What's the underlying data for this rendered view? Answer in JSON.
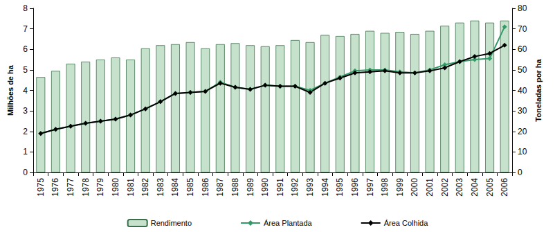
{
  "chart_data": {
    "type": "bar",
    "categories": [
      "1975",
      "1976",
      "1977",
      "1978",
      "1979",
      "1980",
      "1981",
      "1982",
      "1983",
      "1984",
      "1985",
      "1986",
      "1987",
      "1988",
      "1989",
      "1990",
      "1991",
      "1992",
      "1993",
      "1994",
      "1995",
      "1996",
      "1997",
      "1998",
      "1999",
      "2000",
      "2001",
      "2002",
      "2003",
      "2004",
      "2005",
      "2006"
    ],
    "y_label": "Milhões de ha",
    "y2_label": "Toneladas por ha",
    "ylim": [
      0,
      8
    ],
    "yticks": [
      0,
      1,
      2,
      3,
      4,
      5,
      6,
      7,
      8
    ],
    "y2lim": [
      0,
      80
    ],
    "y2ticks": [
      0,
      10,
      20,
      30,
      40,
      50,
      60,
      70,
      80
    ],
    "grid": false,
    "legend": "bottom",
    "series": [
      {
        "name": "Rendimento",
        "type": "bar",
        "axis": "y2",
        "color": "#c6e2cc",
        "values": [
          46.5,
          49.5,
          53,
          54,
          55,
          56,
          55,
          60.5,
          62,
          62.5,
          63.5,
          60.5,
          62.5,
          63,
          62,
          61.5,
          62,
          64.5,
          63.5,
          67,
          66.5,
          67.5,
          69,
          68,
          68.5,
          67.5,
          69,
          71.5,
          73,
          74,
          73,
          74
        ]
      },
      {
        "name": "Área Plantada",
        "type": "line",
        "color": "#339966",
        "marker": "diamond",
        "values": [
          1.9,
          2.1,
          2.25,
          2.4,
          2.5,
          2.6,
          2.8,
          3.1,
          3.45,
          3.85,
          3.9,
          3.95,
          4.4,
          4.15,
          4.05,
          4.25,
          4.2,
          4.2,
          4.0,
          4.35,
          4.65,
          4.95,
          5.0,
          5.0,
          4.9,
          4.85,
          5.0,
          5.25,
          5.4,
          5.5,
          5.55,
          7.1
        ]
      },
      {
        "name": "Área Colhida",
        "type": "line",
        "color": "#000000",
        "marker": "diamond",
        "values": [
          1.9,
          2.1,
          2.25,
          2.4,
          2.5,
          2.6,
          2.8,
          3.1,
          3.45,
          3.85,
          3.9,
          3.95,
          4.35,
          4.15,
          4.05,
          4.25,
          4.2,
          4.2,
          3.9,
          4.35,
          4.6,
          4.85,
          4.9,
          4.95,
          4.85,
          4.85,
          4.95,
          5.1,
          5.4,
          5.65,
          5.8,
          6.2
        ]
      }
    ]
  }
}
